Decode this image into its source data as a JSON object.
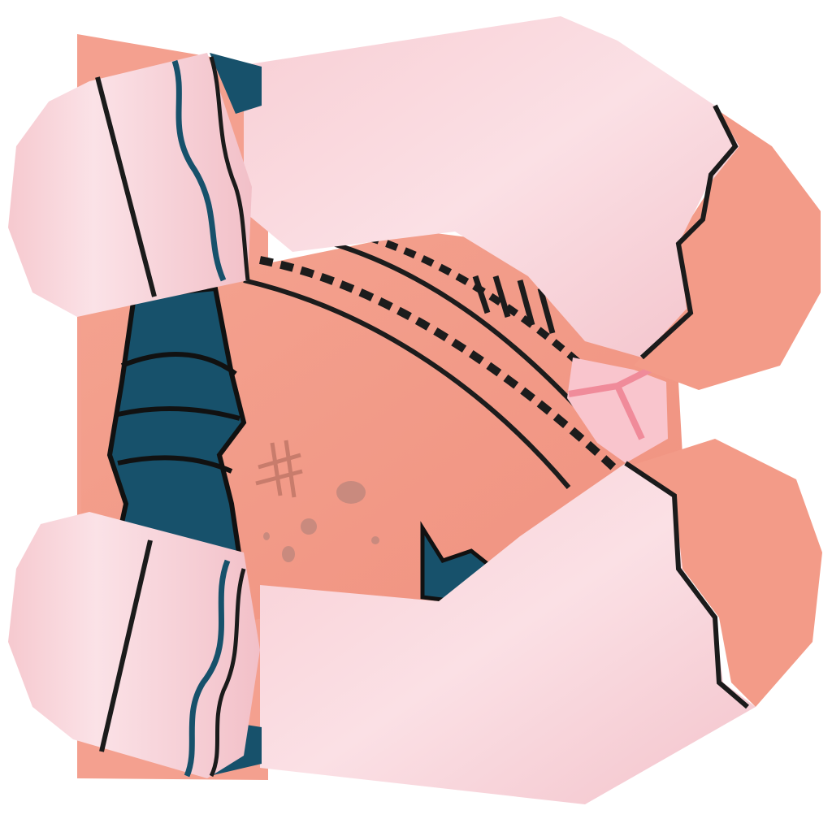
{
  "image": {
    "kind": "texture-atlas",
    "description_free": true
  },
  "colors": {
    "background": "#ffffff",
    "skin": "#f39b88",
    "skin_shadow": "#ee8f7d",
    "skin_back_panel": "#f4a08f",
    "fabric_pink": "#f7cfd4",
    "fabric_pink_light": "#fbe0e4",
    "fabric_pink_shade": "#eeb8c0",
    "navy": "#17516b",
    "navy_dark": "#0f3c52",
    "outline": "#1b1b1b",
    "stitch": "#1c1c1c",
    "freckle": "#c98a7e",
    "scratch": "#c87c6c",
    "blush": "#f08b9a",
    "seam_pink": "#f9b7c4"
  },
  "icons": {
    "top_sleeve": "sleeve-top-icon",
    "bottom_sleeve": "sleeve-bottom-icon",
    "top_glove": "glove-top-icon",
    "bottom_glove": "glove-bottom-icon",
    "center_panel": "skin-panel-icon",
    "navy_band": "navy-cuff-icon",
    "seam": "seam-pink-icon"
  }
}
